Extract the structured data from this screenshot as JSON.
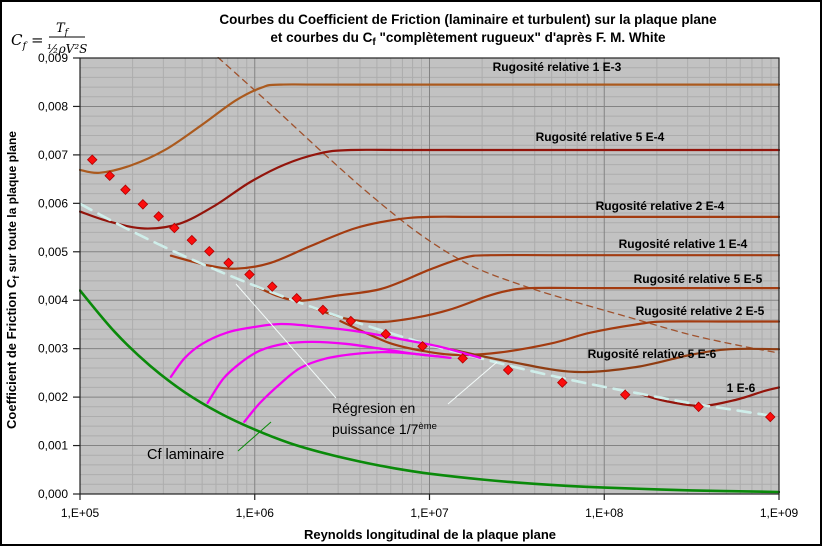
{
  "text": {
    "title1": "Courbes du Coefficient de Friction (laminaire et turbulent) sur la plaque plane",
    "title2a": "et courbes du C",
    "title2sub": "f",
    "title2b": " \"complètement rugueux\" d'après F. M. White",
    "formula_lhs": "C",
    "formula_lhs_sub": "f",
    "formula_eq": " =",
    "formula_num": "T",
    "formula_num_sub": "f",
    "formula_den": "½ρV²S"
  },
  "axes": {
    "x": {
      "title": "Reynolds longitudinal de la plaque plane",
      "ticks": [
        "1,E+05",
        "1,E+06",
        "1,E+07",
        "1,E+08",
        "1,E+09"
      ],
      "log_range": [
        5,
        9
      ]
    },
    "y": {
      "title_pre": "Coefficient de Friction C",
      "title_sub": "f",
      "title_post": " sur toute la plaque plane",
      "ticks": [
        "0,000",
        "0,001",
        "0,002",
        "0,003",
        "0,004",
        "0,005",
        "0,006",
        "0,007",
        "0,008",
        "0,009"
      ],
      "range": [
        0,
        0.009
      ],
      "minor_step": 0.0002
    }
  },
  "labels": {
    "rug_1e3": "Rugosité relative 1 E-3",
    "rug_5e4": "Rugosité relative 5 E-4",
    "rug_2e4": "Rugosité relative 2 E-4",
    "rug_1e4": "Rugosité relative 1 E-4",
    "rug_5e5": "Rugosité relative 5 E-5",
    "rug_2e5": "Rugosité relative 2 E-5",
    "rug_5e6": "Rugosité relative 5 E-6",
    "rug_1e6": "1 E-6",
    "cf_laminaire": "Cf laminaire",
    "reg_line1": "Régresion en",
    "reg_line2": "puissance 1/7",
    "reg_sup": "ème"
  },
  "colors": {
    "plot_bg": "#c2c2c2",
    "grid_minor": "#adadad",
    "grid_major": "#838383",
    "plot_border": "#222222",
    "frame": "#000000",
    "label_1e3": "#ab5a1e",
    "label_5e4": "#93140b",
    "label_sienna": "#a33b10",
    "label_5e6": "#8f3c12",
    "laminar_green": "#0a8a0a",
    "regression_cyan": "#b9e8e4",
    "magenta": "#f202f2",
    "diamond_red": "#fb0d0d",
    "leader_white": "#f4fbfa"
  },
  "chart_data": {
    "type": "line",
    "title": "Courbes du Coefficient de Friction (laminaire et turbulent) sur la plaque plane et courbes du Cf \"complètement rugueux\" d'après F. M. White",
    "xlabel": "Reynolds longitudinal de la plaque plane",
    "ylabel": "Coefficient de Friction Cf sur toute la plaque plane",
    "x_log_range": [
      5,
      9
    ],
    "ylim": [
      0,
      0.009
    ],
    "grid": true,
    "series": [
      {
        "name": "transition-onset-boundary",
        "color": "#a0522d",
        "width": 1.3,
        "dash": "6 5",
        "points": [
          [
            5.79,
            0.00901
          ],
          [
            6.09,
            0.00804
          ],
          [
            6.37,
            0.00711
          ],
          [
            6.66,
            0.00618
          ],
          [
            6.95,
            0.00535
          ],
          [
            7.23,
            0.00473
          ],
          [
            7.52,
            0.00432
          ],
          [
            7.83,
            0.00397
          ],
          [
            8.15,
            0.00364
          ],
          [
            8.49,
            0.00329
          ],
          [
            8.78,
            0.00306
          ],
          [
            9,
            0.00291
          ]
        ]
      },
      {
        "name": "rugosite-relative-1e-3",
        "color": "#ab5a1e",
        "width": 2.2,
        "points": [
          [
            5,
            0.00669
          ],
          [
            5.11,
            0.00663
          ],
          [
            5.29,
            0.00678
          ],
          [
            5.49,
            0.00711
          ],
          [
            5.69,
            0.0076
          ],
          [
            5.89,
            0.00812
          ],
          [
            6.04,
            0.00839
          ],
          [
            6.15,
            0.00845
          ],
          [
            6.6,
            0.00845
          ],
          [
            9,
            0.00845
          ]
        ]
      },
      {
        "name": "rugosite-relative-5e-4",
        "color": "#93140b",
        "width": 2.2,
        "points": [
          [
            5,
            0.00583
          ],
          [
            5.17,
            0.00562
          ],
          [
            5.37,
            0.00548
          ],
          [
            5.57,
            0.00558
          ],
          [
            5.77,
            0.00595
          ],
          [
            5.97,
            0.00643
          ],
          [
            6.17,
            0.0068
          ],
          [
            6.37,
            0.00703
          ],
          [
            6.55,
            0.0071
          ],
          [
            7.0,
            0.0071
          ],
          [
            9,
            0.0071
          ]
        ]
      },
      {
        "name": "rugosite-relative-2e-4",
        "color": "#a33b10",
        "width": 2.2,
        "points": [
          [
            5.52,
            0.00492
          ],
          [
            5.72,
            0.00473
          ],
          [
            5.89,
            0.00465
          ],
          [
            6.09,
            0.00477
          ],
          [
            6.32,
            0.00512
          ],
          [
            6.57,
            0.00548
          ],
          [
            6.8,
            0.00566
          ],
          [
            7.0,
            0.00572
          ],
          [
            7.4,
            0.00572
          ],
          [
            9,
            0.00572
          ]
        ]
      },
      {
        "name": "rugosite-relative-1e-4",
        "color": "#a33b10",
        "width": 2.2,
        "points": [
          [
            6.01,
            0.00428
          ],
          [
            6.13,
            0.00409
          ],
          [
            6.26,
            0.00399
          ],
          [
            6.46,
            0.00409
          ],
          [
            6.73,
            0.00424
          ],
          [
            7.0,
            0.00463
          ],
          [
            7.2,
            0.00488
          ],
          [
            7.35,
            0.00493
          ],
          [
            7.8,
            0.00493
          ],
          [
            9,
            0.00493
          ]
        ]
      },
      {
        "name": "rugosite-relative-5e-5",
        "color": "#a33b10",
        "width": 2.2,
        "points": [
          [
            6.32,
            0.00386
          ],
          [
            6.52,
            0.00362
          ],
          [
            6.72,
            0.00355
          ],
          [
            6.92,
            0.00364
          ],
          [
            7.12,
            0.00381
          ],
          [
            7.32,
            0.00407
          ],
          [
            7.44,
            0.00419
          ],
          [
            7.58,
            0.00425
          ],
          [
            8.0,
            0.00425
          ],
          [
            9,
            0.00425
          ]
        ]
      },
      {
        "name": "rugosite-relative-2e-5",
        "color": "#a33b10",
        "width": 2.2,
        "points": [
          [
            6.49,
            0.00357
          ],
          [
            6.77,
            0.00312
          ],
          [
            7.0,
            0.00293
          ],
          [
            7.17,
            0.00287
          ],
          [
            7.4,
            0.00292
          ],
          [
            7.7,
            0.00311
          ],
          [
            7.92,
            0.00333
          ],
          [
            8.2,
            0.00351
          ],
          [
            8.35,
            0.00356
          ],
          [
            8.7,
            0.00356
          ],
          [
            9,
            0.00356
          ]
        ]
      },
      {
        "name": "rugosite-relative-5e-6",
        "color": "#8f3c12",
        "width": 2.2,
        "points": [
          [
            7.12,
            0.00299
          ],
          [
            7.46,
            0.00273
          ],
          [
            7.83,
            0.00252
          ],
          [
            8.18,
            0.00262
          ],
          [
            8.49,
            0.00287
          ],
          [
            8.72,
            0.00299
          ],
          [
            9,
            0.00299
          ]
        ]
      },
      {
        "name": "rugosite-relative-1e-6",
        "color": "#93140b",
        "width": 2.2,
        "points": [
          [
            8.2,
            0.00207
          ],
          [
            8.35,
            0.00192
          ],
          [
            8.55,
            0.00182
          ],
          [
            8.75,
            0.00194
          ],
          [
            8.92,
            0.00213
          ],
          [
            9,
            0.0022
          ]
        ]
      },
      {
        "name": "regression-puissance-1-7eme",
        "color": "#cfeeea",
        "width": 2.6,
        "dash": "13 8",
        "points": [
          [
            5,
            0.00599
          ],
          [
            5.25,
            0.00551
          ],
          [
            5.5,
            0.00507
          ],
          [
            5.75,
            0.00467
          ],
          [
            6,
            0.0043
          ],
          [
            6.25,
            0.00396
          ],
          [
            6.5,
            0.00364
          ],
          [
            6.75,
            0.00335
          ],
          [
            7,
            0.00308
          ],
          [
            7.25,
            0.00284
          ],
          [
            7.5,
            0.00261
          ],
          [
            7.75,
            0.0024
          ],
          [
            8,
            0.00221
          ],
          [
            8.25,
            0.00204
          ],
          [
            8.5,
            0.00187
          ],
          [
            8.75,
            0.00173
          ],
          [
            9,
            0.00159
          ]
        ]
      },
      {
        "name": "transition-laminaire-turbulent-1",
        "color": "#f202f2",
        "width": 2.3,
        "points": [
          [
            5.52,
            0.00242
          ],
          [
            5.6,
            0.00281
          ],
          [
            5.7,
            0.0031
          ],
          [
            5.84,
            0.00333
          ],
          [
            5.97,
            0.00343
          ],
          [
            6.15,
            0.00351
          ],
          [
            6.37,
            0.00345
          ],
          [
            6.6,
            0.00335
          ],
          [
            6.83,
            0.0032
          ],
          [
            7.06,
            0.00304
          ],
          [
            7.29,
            0.00281
          ]
        ]
      },
      {
        "name": "transition-laminaire-turbulent-2",
        "color": "#f202f2",
        "width": 2.3,
        "points": [
          [
            5.73,
            0.00188
          ],
          [
            5.82,
            0.00238
          ],
          [
            5.92,
            0.00271
          ],
          [
            6.03,
            0.00296
          ],
          [
            6.17,
            0.0031
          ],
          [
            6.33,
            0.00314
          ],
          [
            6.52,
            0.0031
          ],
          [
            6.72,
            0.003
          ],
          [
            6.92,
            0.00289
          ],
          [
            7.08,
            0.00283
          ]
        ]
      },
      {
        "name": "transition-laminaire-turbulent-3",
        "color": "#f202f2",
        "width": 2.3,
        "points": [
          [
            5.94,
            0.00149
          ],
          [
            6.03,
            0.00188
          ],
          [
            6.15,
            0.00229
          ],
          [
            6.26,
            0.0026
          ],
          [
            6.4,
            0.00279
          ],
          [
            6.57,
            0.00289
          ],
          [
            6.75,
            0.00293
          ],
          [
            6.92,
            0.00289
          ],
          [
            7.12,
            0.00281
          ]
        ]
      },
      {
        "name": "cf-laminaire",
        "color": "#0a8a0a",
        "width": 2.6,
        "points": [
          [
            5,
            0.0042
          ],
          [
            5.2,
            0.00334
          ],
          [
            5.4,
            0.00265
          ],
          [
            5.6,
            0.0021
          ],
          [
            5.8,
            0.00167
          ],
          [
            6,
            0.00133
          ],
          [
            6.2,
            0.00105
          ],
          [
            6.4,
            0.00084
          ],
          [
            6.6,
            0.00067
          ],
          [
            6.8,
            0.00053
          ],
          [
            7,
            0.00042
          ],
          [
            7.3,
            0.0003
          ],
          [
            7.6,
            0.00021
          ],
          [
            8,
            0.000133
          ],
          [
            8.5,
            7.5e-05
          ],
          [
            9,
            4.2e-05
          ]
        ]
      },
      {
        "name": "cf-turbulent-white-points",
        "marker": "diamond",
        "color": "#fb0d0d",
        "size": 4.7,
        "points": [
          [
            5.07,
            0.0069
          ],
          [
            5.17,
            0.00657
          ],
          [
            5.26,
            0.00628
          ],
          [
            5.36,
            0.00598
          ],
          [
            5.45,
            0.00573
          ],
          [
            5.54,
            0.00549
          ],
          [
            5.64,
            0.00524
          ],
          [
            5.74,
            0.00501
          ],
          [
            5.85,
            0.00477
          ],
          [
            5.97,
            0.00453
          ],
          [
            6.1,
            0.00428
          ],
          [
            6.24,
            0.00404
          ],
          [
            6.39,
            0.0038
          ],
          [
            6.55,
            0.00357
          ],
          [
            6.75,
            0.0033
          ],
          [
            6.96,
            0.00305
          ],
          [
            7.19,
            0.0028
          ],
          [
            7.45,
            0.00256
          ],
          [
            7.76,
            0.0023
          ],
          [
            8.12,
            0.00205
          ],
          [
            8.54,
            0.0018
          ],
          [
            8.95,
            0.00159
          ]
        ]
      }
    ]
  }
}
